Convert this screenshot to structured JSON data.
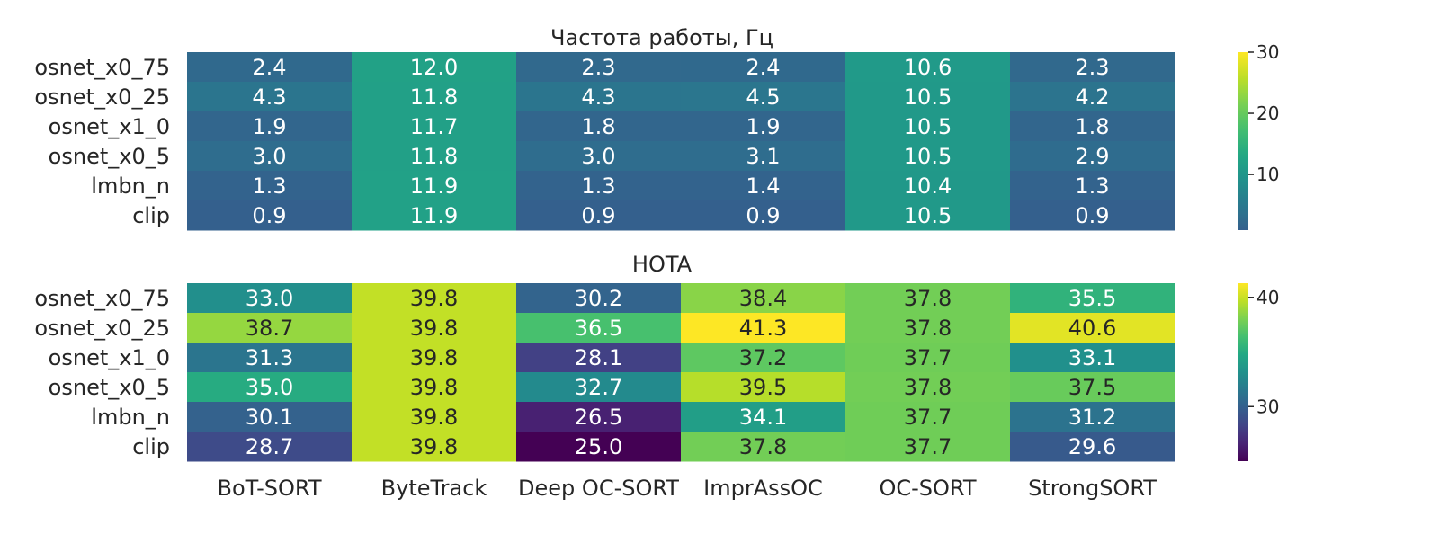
{
  "chart_data": [
    {
      "type": "heatmap",
      "title": "Частота работы, Гц",
      "rows": [
        "osnet_x0_75",
        "osnet_x0_25",
        "osnet_x1_0",
        "osnet_x0_5",
        "lmbn_n",
        "clip"
      ],
      "columns": [
        "BoT-SORT",
        "ByteTrack",
        "Deep OC-SORT",
        "ImprAssOC",
        "OC-SORT",
        "StrongSORT"
      ],
      "values": [
        [
          2.4,
          12.0,
          2.3,
          2.4,
          10.6,
          2.3
        ],
        [
          4.3,
          11.8,
          4.3,
          4.5,
          10.5,
          4.2
        ],
        [
          1.9,
          11.7,
          1.8,
          1.9,
          10.5,
          1.8
        ],
        [
          3.0,
          11.8,
          3.0,
          3.1,
          10.5,
          2.9
        ],
        [
          1.3,
          11.9,
          1.3,
          1.4,
          10.4,
          1.3
        ],
        [
          0.9,
          11.9,
          0.9,
          0.9,
          10.5,
          0.9
        ]
      ],
      "labels": [
        [
          "2.4",
          "12.0",
          "2.3",
          "2.4",
          "10.6",
          "2.3"
        ],
        [
          "4.3",
          "11.8",
          "4.3",
          "4.5",
          "10.5",
          "4.2"
        ],
        [
          "1.9",
          "11.7",
          "1.8",
          "1.9",
          "10.5",
          "1.8"
        ],
        [
          "3.0",
          "11.8",
          "3.0",
          "3.1",
          "10.5",
          "2.9"
        ],
        [
          "1.3",
          "11.9",
          "1.3",
          "1.4",
          "10.4",
          "1.3"
        ],
        [
          "0.9",
          "11.9",
          "0.9",
          "0.9",
          "10.5",
          "0.9"
        ]
      ],
      "colormap": "viridis",
      "vmin": -11.9,
      "vmax": 30,
      "colorbar_ticks": [
        10,
        20,
        30
      ],
      "colorbar_tick_labels": [
        "10",
        "20",
        "30"
      ],
      "colorbar_range": [
        0.9,
        30
      ],
      "xlabel": "",
      "ylabel": ""
    },
    {
      "type": "heatmap",
      "title": "HOTA",
      "rows": [
        "osnet_x0_75",
        "osnet_x0_25",
        "osnet_x1_0",
        "osnet_x0_5",
        "lmbn_n",
        "clip"
      ],
      "columns": [
        "BoT-SORT",
        "ByteTrack",
        "Deep OC-SORT",
        "ImprAssOC",
        "OC-SORT",
        "StrongSORT"
      ],
      "values": [
        [
          33.0,
          39.8,
          30.2,
          38.4,
          37.8,
          35.5
        ],
        [
          38.7,
          39.8,
          36.5,
          41.3,
          37.8,
          40.6
        ],
        [
          31.3,
          39.8,
          28.1,
          37.2,
          37.7,
          33.1
        ],
        [
          35.0,
          39.8,
          32.7,
          39.5,
          37.8,
          37.5
        ],
        [
          30.1,
          39.8,
          26.5,
          34.1,
          37.7,
          31.2
        ],
        [
          28.7,
          39.8,
          25.0,
          37.8,
          37.7,
          29.6
        ]
      ],
      "labels": [
        [
          "33.0",
          "39.8",
          "30.2",
          "38.4",
          "37.8",
          "35.5"
        ],
        [
          "38.7",
          "39.8",
          "36.5",
          "41.3",
          "37.8",
          "40.6"
        ],
        [
          "31.3",
          "39.8",
          "28.1",
          "37.2",
          "37.7",
          "33.1"
        ],
        [
          "35.0",
          "39.8",
          "32.7",
          "39.5",
          "37.8",
          "37.5"
        ],
        [
          "30.1",
          "39.8",
          "26.5",
          "34.1",
          "37.7",
          "31.2"
        ],
        [
          "28.7",
          "39.8",
          "25.0",
          "37.8",
          "37.7",
          "29.6"
        ]
      ],
      "colormap": "viridis",
      "vmin": 25.0,
      "vmax": 41.3,
      "colorbar_ticks": [
        30,
        40
      ],
      "colorbar_tick_labels": [
        "30",
        "40"
      ],
      "colorbar_range": [
        25.0,
        41.3
      ],
      "xlabel": "",
      "ylabel": ""
    }
  ],
  "colors": {
    "background": "#ffffff",
    "text": "#262626",
    "label_light": "#ffffff",
    "label_dark": "#262626"
  }
}
